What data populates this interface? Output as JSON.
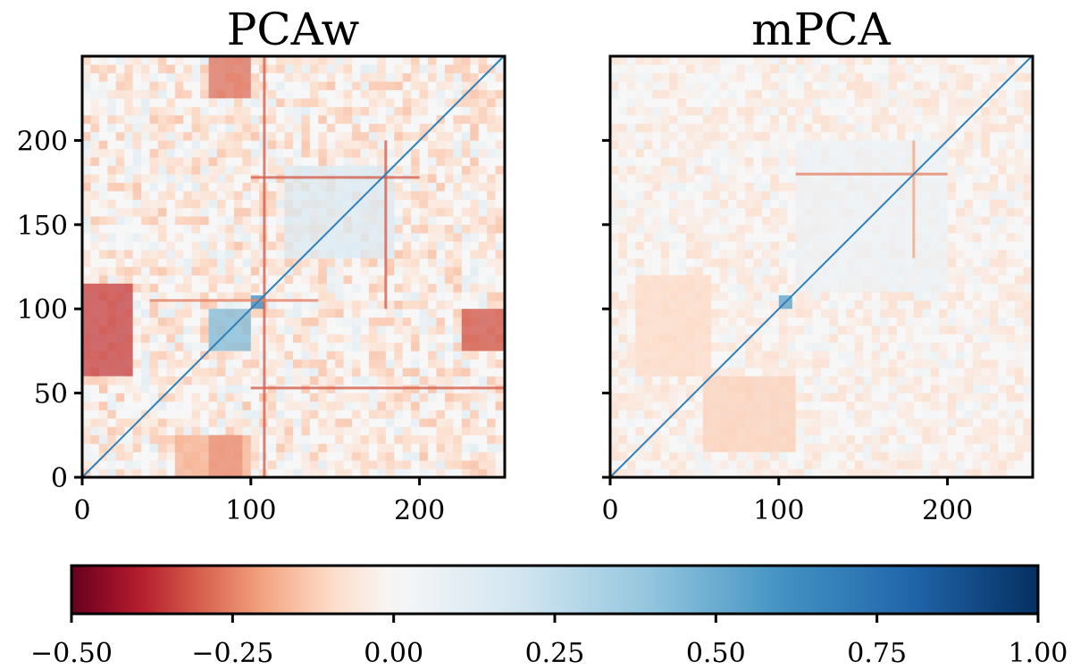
{
  "chart_data": {
    "type": "heatmap",
    "panels": [
      {
        "title": "PCAw",
        "x_ticks": [
          "0",
          "100",
          "200"
        ],
        "y_ticks": [
          "0",
          "50",
          "100",
          "150",
          "200"
        ],
        "xlim": [
          0,
          250
        ],
        "ylim": [
          0,
          250
        ],
        "blocks": [
          {
            "x": [
              0,
              30
            ],
            "y": [
              60,
              115
            ],
            "value": -0.35
          },
          {
            "x": [
              225,
              250
            ],
            "y": [
              75,
              100
            ],
            "value": -0.32
          },
          {
            "x": [
              75,
              95
            ],
            "y": [
              0,
              25
            ],
            "value": -0.35
          },
          {
            "x": [
              55,
              100
            ],
            "y": [
              0,
              25
            ],
            "value": -0.18
          },
          {
            "x": [
              75,
              100
            ],
            "y": [
              225,
              250
            ],
            "value": -0.28
          },
          {
            "x": [
              75,
              100
            ],
            "y": [
              75,
              100
            ],
            "value": 0.45
          },
          {
            "x": [
              100,
              108
            ],
            "y": [
              100,
              108
            ],
            "value": 0.65
          },
          {
            "x": [
              120,
              185
            ],
            "y": [
              130,
              185
            ],
            "value": 0.15
          }
        ],
        "lines": [
          {
            "orient": "v",
            "pos": 108,
            "from": 0,
            "to": 250,
            "value": -0.3
          },
          {
            "orient": "h",
            "pos": 53,
            "from": 100,
            "to": 250,
            "value": -0.3
          },
          {
            "orient": "h",
            "pos": 178,
            "from": 100,
            "to": 200,
            "value": -0.3
          },
          {
            "orient": "v",
            "pos": 180,
            "from": 100,
            "to": 200,
            "value": -0.3
          },
          {
            "orient": "h",
            "pos": 105,
            "from": 40,
            "to": 140,
            "value": -0.25
          }
        ]
      },
      {
        "title": "mPCA",
        "x_ticks": [
          "0",
          "100",
          "200"
        ],
        "y_ticks": [
          "0",
          "50",
          "100",
          "150",
          "200"
        ],
        "xlim": [
          0,
          250
        ],
        "ylim": [
          0,
          250
        ],
        "blocks": [
          {
            "x": [
              100,
              108
            ],
            "y": [
              100,
              108
            ],
            "value": 0.55
          },
          {
            "x": [
              15,
              60
            ],
            "y": [
              60,
              120
            ],
            "value": -0.1
          },
          {
            "x": [
              55,
              110
            ],
            "y": [
              15,
              60
            ],
            "value": -0.12
          },
          {
            "x": [
              110,
              200
            ],
            "y": [
              110,
              200
            ],
            "value": 0.06
          }
        ],
        "lines": [
          {
            "orient": "h",
            "pos": 180,
            "from": 110,
            "to": 200,
            "value": -0.25
          },
          {
            "orient": "v",
            "pos": 180,
            "from": 130,
            "to": 200,
            "value": -0.2
          }
        ]
      }
    ],
    "colorbar": {
      "colormap": "RdBu",
      "vmin": -0.5,
      "vmax": 1.0,
      "center": 0.0,
      "ticks": [
        -0.5,
        -0.25,
        0.0,
        0.25,
        0.5,
        0.75,
        1.0
      ],
      "tick_labels": [
        "−0.50",
        "−0.25",
        "0.00",
        "0.25",
        "0.50",
        "0.75",
        "1.00"
      ]
    },
    "colors": {
      "negative_end": "#67001f",
      "neutral": "#f7f7f7",
      "positive_end": "#053061",
      "diagonal": "#2c7fb8"
    }
  }
}
